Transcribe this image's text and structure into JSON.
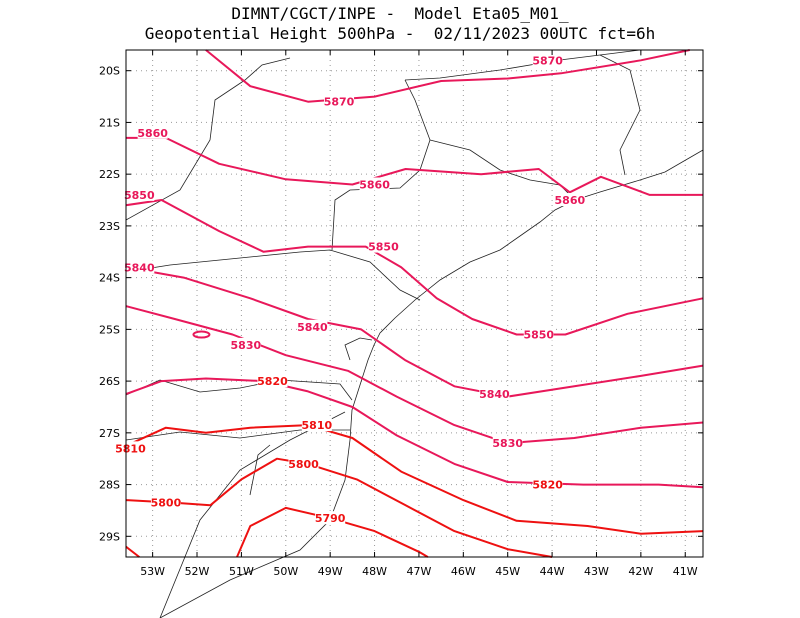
{
  "title_line1": "DIMNT/CGCT/INPE -  Model Eta05_M01_",
  "title_line2": "Geopotential Height 500hPa -  02/11/2023 00UTC fct=6h",
  "colors": {
    "high_contour": "#e8185a",
    "low_contour": "#ee1111",
    "coastline": "#222222",
    "grid": "#9a9a9a"
  },
  "map": {
    "lon_range": [
      -53.6,
      -40.6
    ],
    "lat_range": [
      -29.4,
      -19.6
    ],
    "lon_ticks": [
      "53W",
      "52W",
      "51W",
      "50W",
      "49W",
      "48W",
      "47W",
      "46W",
      "45W",
      "44W",
      "43W",
      "42W",
      "41W"
    ],
    "lat_ticks": [
      "20S",
      "21S",
      "22S",
      "23S",
      "24S",
      "25S",
      "26S",
      "27S",
      "28S",
      "29S"
    ]
  },
  "contour_labels": [
    {
      "text": "5870",
      "lon": -44.1,
      "lat": -19.8
    },
    {
      "text": "5870",
      "lon": -48.8,
      "lat": -20.6
    },
    {
      "text": "5860",
      "lon": -53.0,
      "lat": -21.2
    },
    {
      "text": "5860",
      "lon": -48.0,
      "lat": -22.2
    },
    {
      "text": "5860",
      "lon": -43.6,
      "lat": -22.5
    },
    {
      "text": "5850",
      "lon": -53.3,
      "lat": -22.4
    },
    {
      "text": "5850",
      "lon": -47.8,
      "lat": -23.4
    },
    {
      "text": "5850",
      "lon": -44.3,
      "lat": -25.1
    },
    {
      "text": "5840",
      "lon": -53.3,
      "lat": -23.8
    },
    {
      "text": "5840",
      "lon": -49.4,
      "lat": -24.95
    },
    {
      "text": "5840",
      "lon": -45.3,
      "lat": -26.25
    },
    {
      "text": "5830",
      "lon": -50.9,
      "lat": -25.3
    },
    {
      "text": "5830",
      "lon": -45.0,
      "lat": -27.2
    },
    {
      "text": "5820",
      "lon": -50.3,
      "lat": -26.0
    },
    {
      "text": "5820",
      "lon": -44.1,
      "lat": -28.0
    },
    {
      "text": "5810",
      "lon": -49.3,
      "lat": -26.85
    },
    {
      "text": "5810",
      "lon": -53.5,
      "lat": -27.3
    },
    {
      "text": "5800",
      "lon": -49.6,
      "lat": -27.6
    },
    {
      "text": "5800",
      "lon": -52.7,
      "lat": -28.35
    },
    {
      "text": "5790",
      "lon": -49.0,
      "lat": -28.65
    }
  ]
}
